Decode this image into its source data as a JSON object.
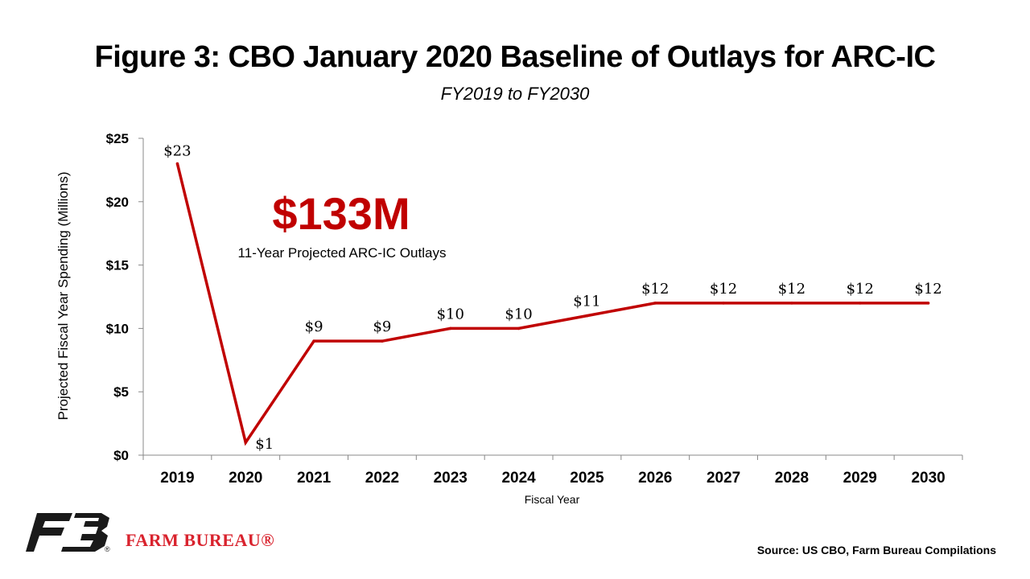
{
  "chart_data": {
    "type": "line",
    "title": "Figure 3: CBO January 2020 Baseline of Outlays for ARC-IC",
    "subtitle": "FY2019 to FY2030",
    "xlabel": "Fiscal Year",
    "ylabel": "Projected Fiscal Year Spending (Millions)",
    "categories": [
      "2019",
      "2020",
      "2021",
      "2022",
      "2023",
      "2024",
      "2025",
      "2026",
      "2027",
      "2028",
      "2029",
      "2030"
    ],
    "series": [
      {
        "values": [
          23,
          1,
          9,
          9,
          10,
          10,
          11,
          12,
          12,
          12,
          12,
          12
        ],
        "data_labels": [
          "$23",
          "$1",
          "$9",
          "$9",
          "$10",
          "$10",
          "$11",
          "$12",
          "$12",
          "$12",
          "$12",
          "$12"
        ],
        "color": "#c00000"
      }
    ],
    "ylim": [
      0,
      25
    ],
    "yticks": [
      0,
      5,
      10,
      15,
      20,
      25
    ],
    "ytick_labels": [
      "$0",
      "$5",
      "$10",
      "$15",
      "$20",
      "$25"
    ],
    "grid": false,
    "annotation": {
      "value_text": "$133M",
      "caption": "11-Year Projected ARC-IC Outlays",
      "color": "#c00000"
    }
  },
  "footer": {
    "source": "Source: US CBO, Farm Bureau Compilations",
    "brand_name": "FARM BUREAU®",
    "logo_icon": "farm-bureau-fb-logo-icon",
    "logo_color": "#1a1a1a"
  }
}
